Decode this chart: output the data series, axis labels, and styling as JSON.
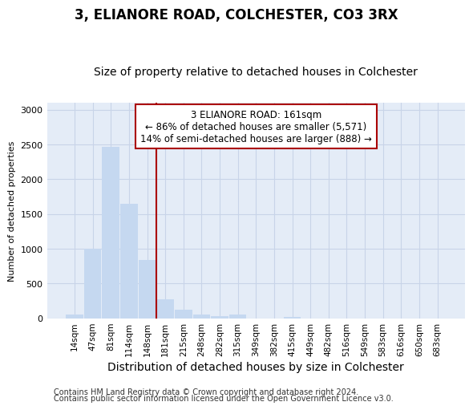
{
  "title": "3, ELIANORE ROAD, COLCHESTER, CO3 3RX",
  "subtitle": "Size of property relative to detached houses in Colchester",
  "xlabel": "Distribution of detached houses by size in Colchester",
  "ylabel": "Number of detached properties",
  "categories": [
    "14sqm",
    "47sqm",
    "81sqm",
    "114sqm",
    "148sqm",
    "181sqm",
    "215sqm",
    "248sqm",
    "282sqm",
    "315sqm",
    "349sqm",
    "382sqm",
    "415sqm",
    "449sqm",
    "482sqm",
    "516sqm",
    "549sqm",
    "583sqm",
    "616sqm",
    "650sqm",
    "683sqm"
  ],
  "values": [
    50,
    1000,
    2470,
    1650,
    840,
    270,
    125,
    50,
    35,
    50,
    0,
    0,
    20,
    0,
    0,
    0,
    0,
    0,
    0,
    0,
    0
  ],
  "bar_color": "#c5d8f0",
  "bar_edge_color": "#c5d8f0",
  "grid_color": "#c8d4e8",
  "bg_color": "#e4ecf7",
  "vline_x": 4.5,
  "vline_color": "#aa0000",
  "annotation_line1": "3 ELIANORE ROAD: 161sqm",
  "annotation_line2": "← 86% of detached houses are smaller (5,571)",
  "annotation_line3": "14% of semi-detached houses are larger (888) →",
  "annotation_box_facecolor": "#ffffff",
  "annotation_box_edgecolor": "#aa0000",
  "ylim_max": 3100,
  "yticks": [
    0,
    500,
    1000,
    1500,
    2000,
    2500,
    3000
  ],
  "footer1": "Contains HM Land Registry data © Crown copyright and database right 2024.",
  "footer2": "Contains public sector information licensed under the Open Government Licence v3.0.",
  "title_fontsize": 12,
  "subtitle_fontsize": 10,
  "xlabel_fontsize": 10,
  "ylabel_fontsize": 8,
  "xtick_fontsize": 7.5,
  "ytick_fontsize": 8,
  "annotation_fontsize": 8.5,
  "footer_fontsize": 7
}
